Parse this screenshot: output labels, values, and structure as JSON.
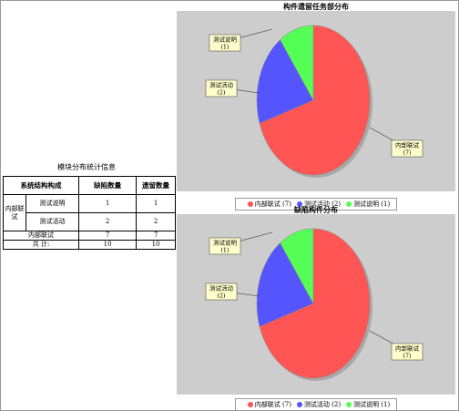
{
  "stats": {
    "title": "模块分布统计信息",
    "headers": [
      "系统结构构成",
      "缺陷数量",
      "遗留数量"
    ],
    "group_label": "内部联试",
    "rows": [
      {
        "name": "测试说明",
        "defects": "1",
        "remaining": "1"
      },
      {
        "name": "测试活动",
        "defects": "2",
        "remaining": "2"
      },
      {
        "name": "内部联试",
        "defects": "7",
        "remaining": "7"
      }
    ],
    "total_label": "共 计:",
    "total_defects": "10",
    "total_remaining": "10"
  },
  "chart_data": [
    {
      "type": "pie",
      "title": "构件遗留任务部分布",
      "categories": [
        "内部联试",
        "测试活动",
        "测试说明"
      ],
      "values": [
        7,
        2,
        1
      ],
      "slice_labels": [
        "内部联试\n(7)",
        "测试活动\n(2)",
        "测试说明\n(1)"
      ],
      "legend": [
        "内部联试 (7)",
        "测试活动 (2)",
        "测试说明 (1)"
      ],
      "colors": [
        "#ff5555",
        "#5555ff",
        "#55ff55"
      ],
      "legend_position": "bottom"
    },
    {
      "type": "pie",
      "title": "缺陷构件分布",
      "categories": [
        "内部联试",
        "测试活动",
        "测试说明"
      ],
      "values": [
        7,
        2,
        1
      ],
      "slice_labels": [
        "内部联试\n(7)",
        "测试活动\n(2)",
        "测试说明\n(1)"
      ],
      "legend": [
        "内部联试 (7)",
        "测试活动 (2)",
        "测试说明 (1)"
      ],
      "colors": [
        "#ff5555",
        "#5555ff",
        "#55ff55"
      ],
      "legend_position": "bottom"
    }
  ]
}
